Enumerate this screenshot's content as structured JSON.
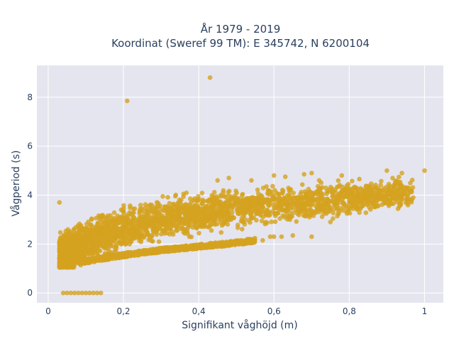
{
  "chart_data": {
    "type": "scatter",
    "title_line1": "År 1979 - 2019",
    "title_line2": "Koordinat (Sweref 99 TM): E 345742, N 6200104",
    "xlabel": "Signifikant våghöjd (m)",
    "ylabel": "Vågperiod (s)",
    "xlim": [
      -0.03,
      1.05
    ],
    "ylim": [
      -0.4,
      9.3
    ],
    "x_ticks": [
      0,
      0.2,
      0.4,
      0.6,
      0.8,
      1
    ],
    "x_tick_labels": [
      "0",
      "0,2",
      "0,4",
      "0,6",
      "0,8",
      "1"
    ],
    "y_ticks": [
      0,
      2,
      4,
      6,
      8
    ],
    "y_tick_labels": [
      "0",
      "2",
      "4",
      "6",
      "8"
    ],
    "grid": true,
    "legend": "none",
    "marker_color": "#d4a21f",
    "plot_bg": "#e5e5ef",
    "series": [
      {
        "name": "",
        "points": [
          [
            0.43,
            8.8
          ],
          [
            0.21,
            7.85
          ],
          [
            0.03,
            3.7
          ],
          [
            1.0,
            5.0
          ],
          [
            0.9,
            5.0
          ],
          [
            0.94,
            4.9
          ],
          [
            0.93,
            4.5
          ],
          [
            0.96,
            4.1
          ],
          [
            0.97,
            3.9
          ],
          [
            0.7,
            4.9
          ],
          [
            0.78,
            4.8
          ],
          [
            0.68,
            4.85
          ],
          [
            0.6,
            4.8
          ],
          [
            0.63,
            4.75
          ],
          [
            0.54,
            4.6
          ],
          [
            0.45,
            4.6
          ],
          [
            0.48,
            4.7
          ],
          [
            0.58,
            4.35
          ],
          [
            0.72,
            4.6
          ],
          [
            0.74,
            4.05
          ],
          [
            0.86,
            4.2
          ],
          [
            0.84,
            4.0
          ],
          [
            0.88,
            4.1
          ],
          [
            0.9,
            3.9
          ],
          [
            0.75,
            2.9
          ],
          [
            0.6,
            2.3
          ],
          [
            0.65,
            2.35
          ],
          [
            0.59,
            2.3
          ],
          [
            0.62,
            2.3
          ],
          [
            0.7,
            2.3
          ],
          [
            0.57,
            2.15
          ],
          [
            0.04,
            2.2
          ],
          [
            0.03,
            1.25
          ],
          [
            0.04,
            0.0
          ],
          [
            0.05,
            0.0
          ],
          [
            0.06,
            0.0
          ],
          [
            0.07,
            0.0
          ],
          [
            0.08,
            0.0
          ],
          [
            0.09,
            0.0
          ],
          [
            0.1,
            0.0
          ],
          [
            0.11,
            0.0
          ],
          [
            0.12,
            0.0
          ],
          [
            0.13,
            0.0
          ],
          [
            0.14,
            0.0
          ]
        ],
        "main_band": [
          [
            0.03,
            1.5
          ],
          [
            0.1,
            2.1
          ],
          [
            0.2,
            2.6
          ],
          [
            0.3,
            3.0
          ],
          [
            0.4,
            3.25
          ],
          [
            0.5,
            3.45
          ],
          [
            0.6,
            3.6
          ],
          [
            0.7,
            3.75
          ],
          [
            0.8,
            3.9
          ],
          [
            0.9,
            4.0
          ],
          [
            0.97,
            4.1
          ]
        ],
        "lower_band": [
          [
            0.05,
            1.2
          ],
          [
            0.1,
            1.3
          ],
          [
            0.2,
            1.55
          ],
          [
            0.3,
            1.75
          ],
          [
            0.4,
            1.9
          ],
          [
            0.5,
            2.05
          ],
          [
            0.55,
            2.15
          ]
        ]
      }
    ]
  }
}
